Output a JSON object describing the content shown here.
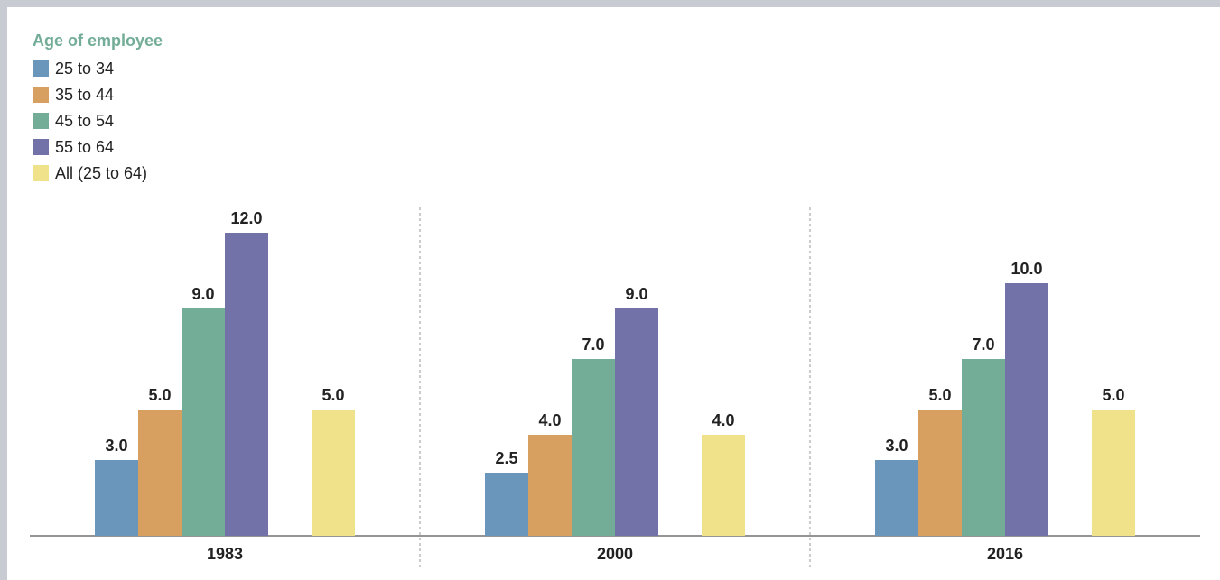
{
  "chart_data": {
    "type": "bar",
    "legend_title": "Age of employee",
    "categories": [
      "1983",
      "2000",
      "2016"
    ],
    "series": [
      {
        "name": "25 to 34",
        "color": "#6a96bb",
        "values": [
          3,
          2.5,
          3
        ],
        "value_labels": [
          "3.0",
          "2.5",
          "3.0"
        ]
      },
      {
        "name": "35 to 44",
        "color": "#d8a060",
        "values": [
          5,
          4,
          5
        ],
        "value_labels": [
          "5.0",
          "4.0",
          "5.0"
        ]
      },
      {
        "name": "45 to 54",
        "color": "#73ad98",
        "values": [
          9,
          7,
          7
        ],
        "value_labels": [
          "9.0",
          "7.0",
          "7.0"
        ]
      },
      {
        "name": "55 to 64",
        "color": "#7272a8",
        "values": [
          12,
          9,
          10
        ],
        "value_labels": [
          "12.0",
          "9.0",
          "10.0"
        ]
      },
      {
        "name": "All (25 to 64)",
        "color": "#f0e28a",
        "values": [
          5,
          4,
          5
        ],
        "value_labels": [
          "5.0",
          "4.0",
          "5.0"
        ]
      }
    ],
    "legend": "top-left"
  }
}
